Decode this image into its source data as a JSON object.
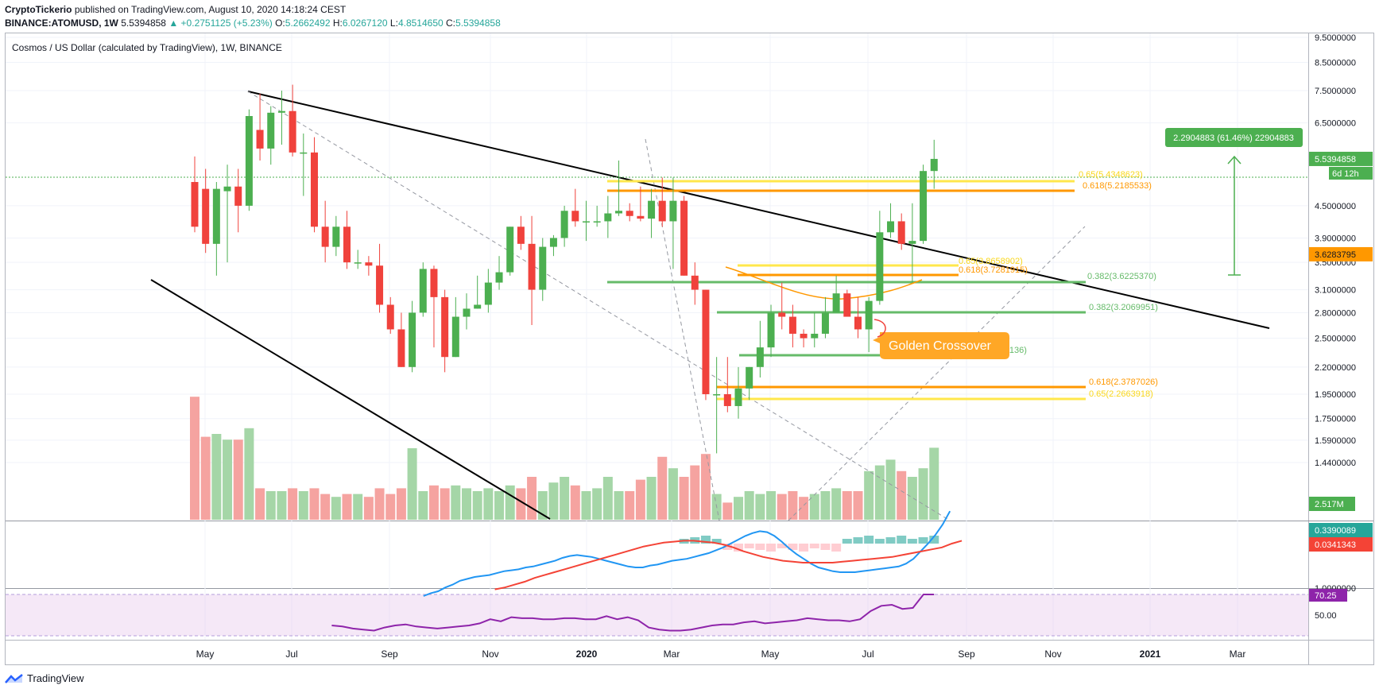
{
  "header": {
    "publisher": "CryptoTickerio",
    "published_text": "published on TradingView.com, August 10, 2020 14:18:24 CEST",
    "symbol": "BINANCE:ATOMUSD, 1W",
    "last": "5.5394858",
    "change": "+0.2751125 (+5.23%)",
    "o_label": "O:",
    "o": "5.2662492",
    "h_label": "H:",
    "h": "6.0267120",
    "l_label": "L:",
    "l": "4.8514650",
    "c_label": "C:",
    "c": "5.5394858",
    "up_arrow": "▲"
  },
  "footer": {
    "brand": "TradingView"
  },
  "colors": {
    "up": "#4caf50",
    "down": "#f0423c",
    "grid": "#f0f3fa",
    "orange": "#ff9800",
    "yellow": "#ffe74c",
    "fib_green": "#66bb6a",
    "macd": "#2196f3",
    "signal": "#f44336",
    "rsi": "#8e24aa"
  },
  "chart_data": {
    "type": "candlestick",
    "title": "Cosmos / US Dollar (calculated by TradingView), 1W, BINANCE",
    "x_ticks": [
      "May",
      "Jul",
      "Sep",
      "Nov",
      "2020",
      "Mar",
      "May",
      "Jul",
      "Sep",
      "Nov",
      "2021",
      "Mar"
    ],
    "y_ticks": [
      "9.5000000",
      "8.5000000",
      "7.5000000",
      "6.5000000",
      "5.5394858",
      "4.5000000",
      "3.9000000",
      "3.6283795",
      "3.5000000",
      "3.1000000",
      "2.8000000",
      "2.5000000",
      "2.2000000",
      "1.9500000",
      "1.7500000",
      "1.5900000",
      "1.4400000"
    ],
    "y_scale": "log",
    "last_price_label": "5.5394858",
    "countdown_label": "6d 12h",
    "ma_label": "3.6283795",
    "volume_label": "2.517M",
    "macd_labels": [
      "0.3390089",
      "0.0341343"
    ],
    "rsi_labels": {
      "value": "70.25",
      "tick1": "1.0000000",
      "tick2": "50.00"
    },
    "measure_label": "2.2904883 (61.46%) 22904883",
    "annotation": "Golden Crossover",
    "fib_labels": [
      {
        "text": "0.65(5.4348623)",
        "color": "yellow"
      },
      {
        "text": "0.618(5.2185533)",
        "color": "orange"
      },
      {
        "text": "0.65(3.8658902)",
        "color": "yellow"
      },
      {
        "text": "0.618(3.7281915)",
        "color": "orange"
      },
      {
        "text": "0.382(3.6225370)",
        "color": "green"
      },
      {
        "text": "0.382(3.2069951)",
        "color": "green"
      },
      {
        "text": "0.382(2.7026136)",
        "color": "green"
      },
      {
        "text": "0.618(2.3787026)",
        "color": "orange"
      },
      {
        "text": "0.65(2.2663918)",
        "color": "yellow"
      }
    ],
    "candles": [
      [
        5.0,
        5.6,
        4.0,
        4.1
      ],
      [
        4.85,
        5.3,
        3.65,
        3.8
      ],
      [
        3.8,
        5.0,
        3.3,
        4.85
      ],
      [
        4.8,
        5.4,
        3.5,
        4.9
      ],
      [
        4.9,
        5.3,
        4.0,
        4.5
      ],
      [
        4.5,
        6.9,
        4.4,
        6.7
      ],
      [
        6.3,
        7.4,
        5.5,
        5.8
      ],
      [
        5.8,
        7.0,
        5.4,
        6.8
      ],
      [
        6.8,
        7.5,
        5.9,
        6.85
      ],
      [
        6.85,
        7.7,
        5.6,
        5.7
      ],
      [
        5.7,
        6.2,
        4.7,
        5.7
      ],
      [
        5.7,
        6.1,
        4.0,
        4.1
      ],
      [
        4.1,
        4.6,
        3.5,
        3.75
      ],
      [
        3.75,
        4.3,
        3.6,
        4.1
      ],
      [
        4.1,
        4.4,
        3.4,
        3.5
      ],
      [
        3.5,
        3.7,
        3.4,
        3.5
      ],
      [
        3.5,
        3.6,
        3.3,
        3.45
      ],
      [
        3.45,
        3.8,
        2.8,
        2.9
      ],
      [
        2.9,
        3.0,
        2.55,
        2.6
      ],
      [
        2.6,
        2.8,
        2.2,
        2.2
      ],
      [
        2.2,
        2.95,
        2.15,
        2.8
      ],
      [
        2.8,
        3.5,
        2.75,
        3.4
      ],
      [
        3.4,
        3.45,
        2.4,
        3.0
      ],
      [
        3.0,
        3.1,
        2.15,
        2.3
      ],
      [
        2.3,
        3.0,
        2.3,
        2.75
      ],
      [
        2.75,
        3.05,
        2.6,
        2.85
      ],
      [
        2.85,
        3.3,
        2.85,
        2.9
      ],
      [
        2.9,
        3.4,
        2.8,
        3.2
      ],
      [
        3.2,
        3.6,
        3.1,
        3.35
      ],
      [
        3.35,
        4.1,
        3.3,
        4.1
      ],
      [
        4.1,
        4.3,
        3.7,
        3.8
      ],
      [
        3.8,
        4.3,
        2.65,
        3.1
      ],
      [
        3.1,
        3.9,
        2.95,
        3.75
      ],
      [
        3.75,
        3.95,
        3.6,
        3.9
      ],
      [
        3.9,
        4.5,
        3.75,
        4.4
      ],
      [
        4.4,
        4.85,
        4.1,
        4.2
      ],
      [
        4.2,
        4.6,
        3.85,
        4.2
      ],
      [
        4.2,
        4.5,
        4.1,
        4.2
      ],
      [
        4.2,
        4.7,
        3.9,
        4.35
      ],
      [
        4.35,
        5.5,
        4.3,
        4.4
      ],
      [
        4.4,
        4.55,
        4.2,
        4.3
      ],
      [
        4.3,
        4.9,
        4.2,
        4.25
      ],
      [
        4.25,
        4.85,
        3.9,
        4.6
      ],
      [
        4.6,
        5.1,
        4.1,
        4.2
      ],
      [
        4.2,
        5.1,
        3.4,
        4.6
      ],
      [
        4.6,
        4.7,
        3.3,
        3.3
      ],
      [
        3.3,
        3.5,
        2.9,
        3.1
      ],
      [
        3.1,
        3.1,
        1.9,
        1.95
      ],
      [
        1.95,
        2.3,
        1.5,
        1.95
      ],
      [
        1.95,
        2.3,
        1.8,
        1.85
      ],
      [
        1.85,
        2.2,
        1.75,
        2.0
      ],
      [
        2.0,
        2.2,
        1.9,
        2.2
      ],
      [
        2.2,
        2.7,
        2.1,
        2.4
      ],
      [
        2.4,
        2.9,
        2.3,
        2.8
      ],
      [
        2.8,
        3.2,
        2.6,
        2.75
      ],
      [
        2.75,
        2.9,
        2.4,
        2.55
      ],
      [
        2.55,
        2.6,
        2.4,
        2.5
      ],
      [
        2.5,
        2.8,
        2.4,
        2.55
      ],
      [
        2.55,
        3.0,
        2.5,
        2.8
      ],
      [
        2.8,
        3.3,
        2.8,
        3.05
      ],
      [
        3.05,
        3.1,
        2.8,
        2.75
      ],
      [
        2.75,
        3.0,
        2.5,
        2.6
      ],
      [
        2.6,
        3.0,
        2.35,
        2.95
      ],
      [
        2.95,
        4.4,
        2.9,
        4.0
      ],
      [
        4.0,
        4.55,
        3.9,
        4.2
      ],
      [
        4.2,
        4.35,
        3.7,
        3.8
      ],
      [
        3.8,
        4.55,
        3.2,
        3.85
      ],
      [
        3.85,
        5.4,
        3.8,
        5.25
      ],
      [
        5.25,
        6.03,
        4.85,
        5.54
      ]
    ],
    "volume_millions": [
      4.3,
      2.9,
      3.0,
      2.8,
      2.8,
      3.2,
      1.1,
      1.0,
      1.0,
      1.1,
      1.0,
      1.1,
      0.9,
      0.8,
      0.9,
      0.9,
      0.8,
      1.1,
      0.9,
      1.1,
      2.5,
      1.0,
      1.2,
      1.1,
      1.2,
      1.1,
      1.0,
      1.1,
      1.0,
      1.2,
      1.1,
      1.5,
      1.0,
      1.3,
      1.5,
      1.2,
      1.0,
      1.1,
      1.5,
      1.0,
      1.0,
      1.4,
      1.5,
      2.2,
      1.8,
      1.5,
      1.9,
      2.3,
      0.9,
      0.6,
      0.8,
      1.0,
      0.9,
      1.0,
      0.9,
      1.0,
      0.8,
      0.9,
      1.0,
      1.1,
      1.0,
      1.0,
      1.7,
      1.9,
      2.1,
      1.7,
      1.5,
      1.8,
      2.517
    ],
    "macd": [
      -0.55,
      -0.52,
      -0.5,
      -0.46,
      -0.43,
      -0.39,
      -0.37,
      -0.35,
      -0.34,
      -0.33,
      -0.31,
      -0.29,
      -0.28,
      -0.27,
      -0.25,
      -0.24,
      -0.22,
      -0.2,
      -0.18,
      -0.15,
      -0.13,
      -0.12,
      -0.13,
      -0.14,
      -0.16,
      -0.18,
      -0.2,
      -0.22,
      -0.24,
      -0.25,
      -0.25,
      -0.23,
      -0.22,
      -0.2,
      -0.18,
      -0.17,
      -0.16,
      -0.14,
      -0.12,
      -0.1,
      -0.07,
      -0.04,
      0.0,
      0.04,
      0.08,
      0.11,
      0.13,
      0.12,
      0.08,
      0.02,
      -0.05,
      -0.11,
      -0.16,
      -0.21,
      -0.25,
      -0.27,
      -0.29,
      -0.3,
      -0.3,
      -0.3,
      -0.29,
      -0.28,
      -0.27,
      -0.26,
      -0.25,
      -0.24,
      -0.21,
      -0.16,
      -0.08,
      0.0,
      0.09,
      0.2,
      0.34
    ],
    "signal": [
      -0.48,
      -0.46,
      -0.43,
      -0.4,
      -0.36,
      -0.33,
      -0.3,
      -0.27,
      -0.24,
      -0.21,
      -0.18,
      -0.15,
      -0.12,
      -0.09,
      -0.06,
      -0.03,
      -0.01,
      0.01,
      0.02,
      0.03,
      0.03,
      0.02,
      0.01,
      -0.01,
      -0.04,
      -0.08,
      -0.11,
      -0.14,
      -0.16,
      -0.18,
      -0.19,
      -0.2,
      -0.2,
      -0.2,
      -0.2,
      -0.19,
      -0.18,
      -0.17,
      -0.16,
      -0.15,
      -0.14,
      -0.12,
      -0.1,
      -0.08,
      -0.06,
      -0.04,
      0.0,
      0.03
    ],
    "rsi": [
      40,
      39,
      37,
      36,
      35,
      38,
      40,
      41,
      39,
      38,
      37,
      38,
      39,
      40,
      42,
      46,
      44,
      48,
      47,
      47,
      46,
      46,
      47,
      47,
      46,
      46,
      49,
      46,
      48,
      45,
      38,
      36,
      35,
      35,
      36,
      38,
      40,
      41,
      41,
      43,
      44,
      42,
      43,
      44,
      45,
      47,
      46,
      45,
      45,
      44,
      46,
      54,
      59,
      60,
      56,
      57,
      70,
      70
    ]
  }
}
